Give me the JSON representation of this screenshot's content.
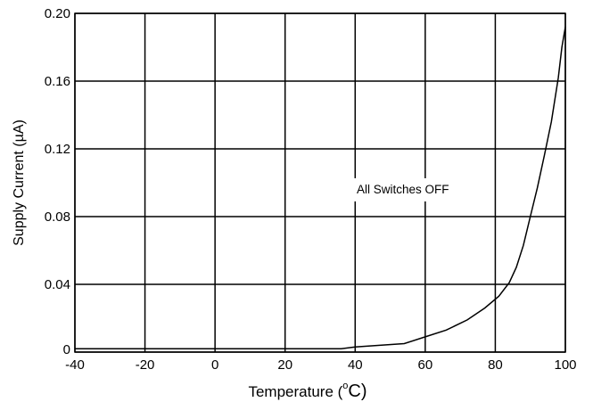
{
  "chart_data": {
    "type": "line",
    "title": "",
    "xlabel": "Temperature (°C)",
    "xlabel_prefix": "Temperature (",
    "xlabel_degree": "o",
    "xlabel_unit": "C)",
    "ylabel": "Supply Current (µA)",
    "xlim": [
      -40,
      100
    ],
    "ylim": [
      0,
      0.2
    ],
    "x_ticks": [
      -40,
      -20,
      0,
      20,
      40,
      60,
      80,
      100
    ],
    "x_tick_labels": [
      "-40",
      "-20",
      "0",
      "20",
      "40",
      "60",
      "80",
      "100"
    ],
    "y_ticks": [
      0,
      0.04,
      0.08,
      0.12,
      0.16,
      0.2
    ],
    "y_tick_labels": [
      "0",
      "0.04",
      "0.08",
      "0.12",
      "0.16",
      "0.20"
    ],
    "grid": true,
    "annotation": "All Switches OFF",
    "series": [
      {
        "x": [
          -40,
          -20,
          0,
          20,
          36,
          40,
          47,
          54,
          60,
          66,
          72,
          77,
          81,
          84,
          86,
          88,
          90,
          92,
          94,
          96,
          98,
          99,
          100
        ],
        "y": [
          0.002,
          0.002,
          0.002,
          0.002,
          0.002,
          0.003,
          0.004,
          0.005,
          0.009,
          0.013,
          0.019,
          0.026,
          0.033,
          0.041,
          0.05,
          0.063,
          0.08,
          0.097,
          0.116,
          0.136,
          0.162,
          0.18,
          0.192
        ]
      }
    ]
  }
}
